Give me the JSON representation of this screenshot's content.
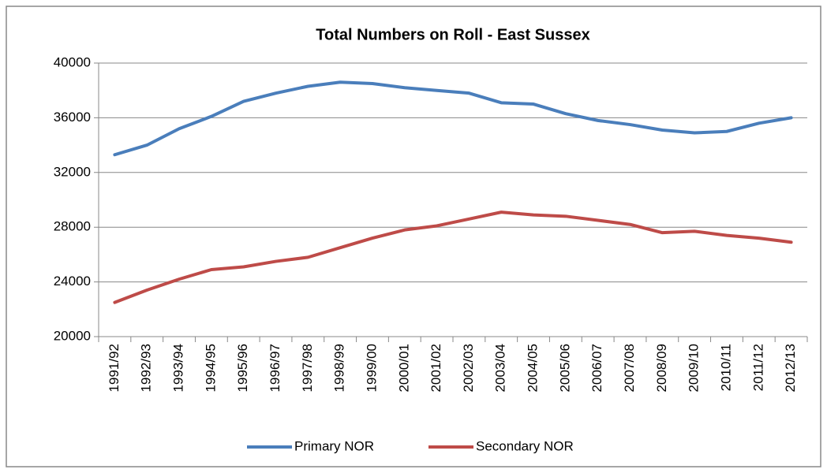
{
  "chart_data": {
    "type": "line",
    "title": "Total Numbers on Roll - East Sussex",
    "categories": [
      "1991/92",
      "1992/93",
      "1993/94",
      "1994/95",
      "1995/96",
      "1996/97",
      "1997/98",
      "1998/99",
      "1999/00",
      "2000/01",
      "2001/02",
      "2002/03",
      "2003/04",
      "2004/05",
      "2005/06",
      "2006/07",
      "2007/08",
      "2008/09",
      "2009/10",
      "2010/11",
      "2011/12",
      "2012/13"
    ],
    "series": [
      {
        "name": "Primary NOR",
        "color": "#4a7ebb",
        "values": [
          33300,
          34000,
          35200,
          36100,
          37200,
          37800,
          38300,
          38600,
          38500,
          38200,
          38000,
          37800,
          37100,
          37000,
          36300,
          35800,
          35500,
          35100,
          34900,
          35000,
          35600,
          36000
        ]
      },
      {
        "name": "Secondary NOR",
        "color": "#be4b48",
        "values": [
          22500,
          23400,
          24200,
          24900,
          25100,
          25500,
          25800,
          26500,
          27200,
          27800,
          28100,
          28600,
          29100,
          28900,
          28800,
          28500,
          28200,
          27600,
          27700,
          27400,
          27200,
          26900
        ]
      }
    ],
    "ylim": [
      20000,
      40000
    ],
    "yticks": [
      20000,
      24000,
      28000,
      32000,
      36000,
      40000
    ],
    "grid": true,
    "legend": "bottom"
  }
}
